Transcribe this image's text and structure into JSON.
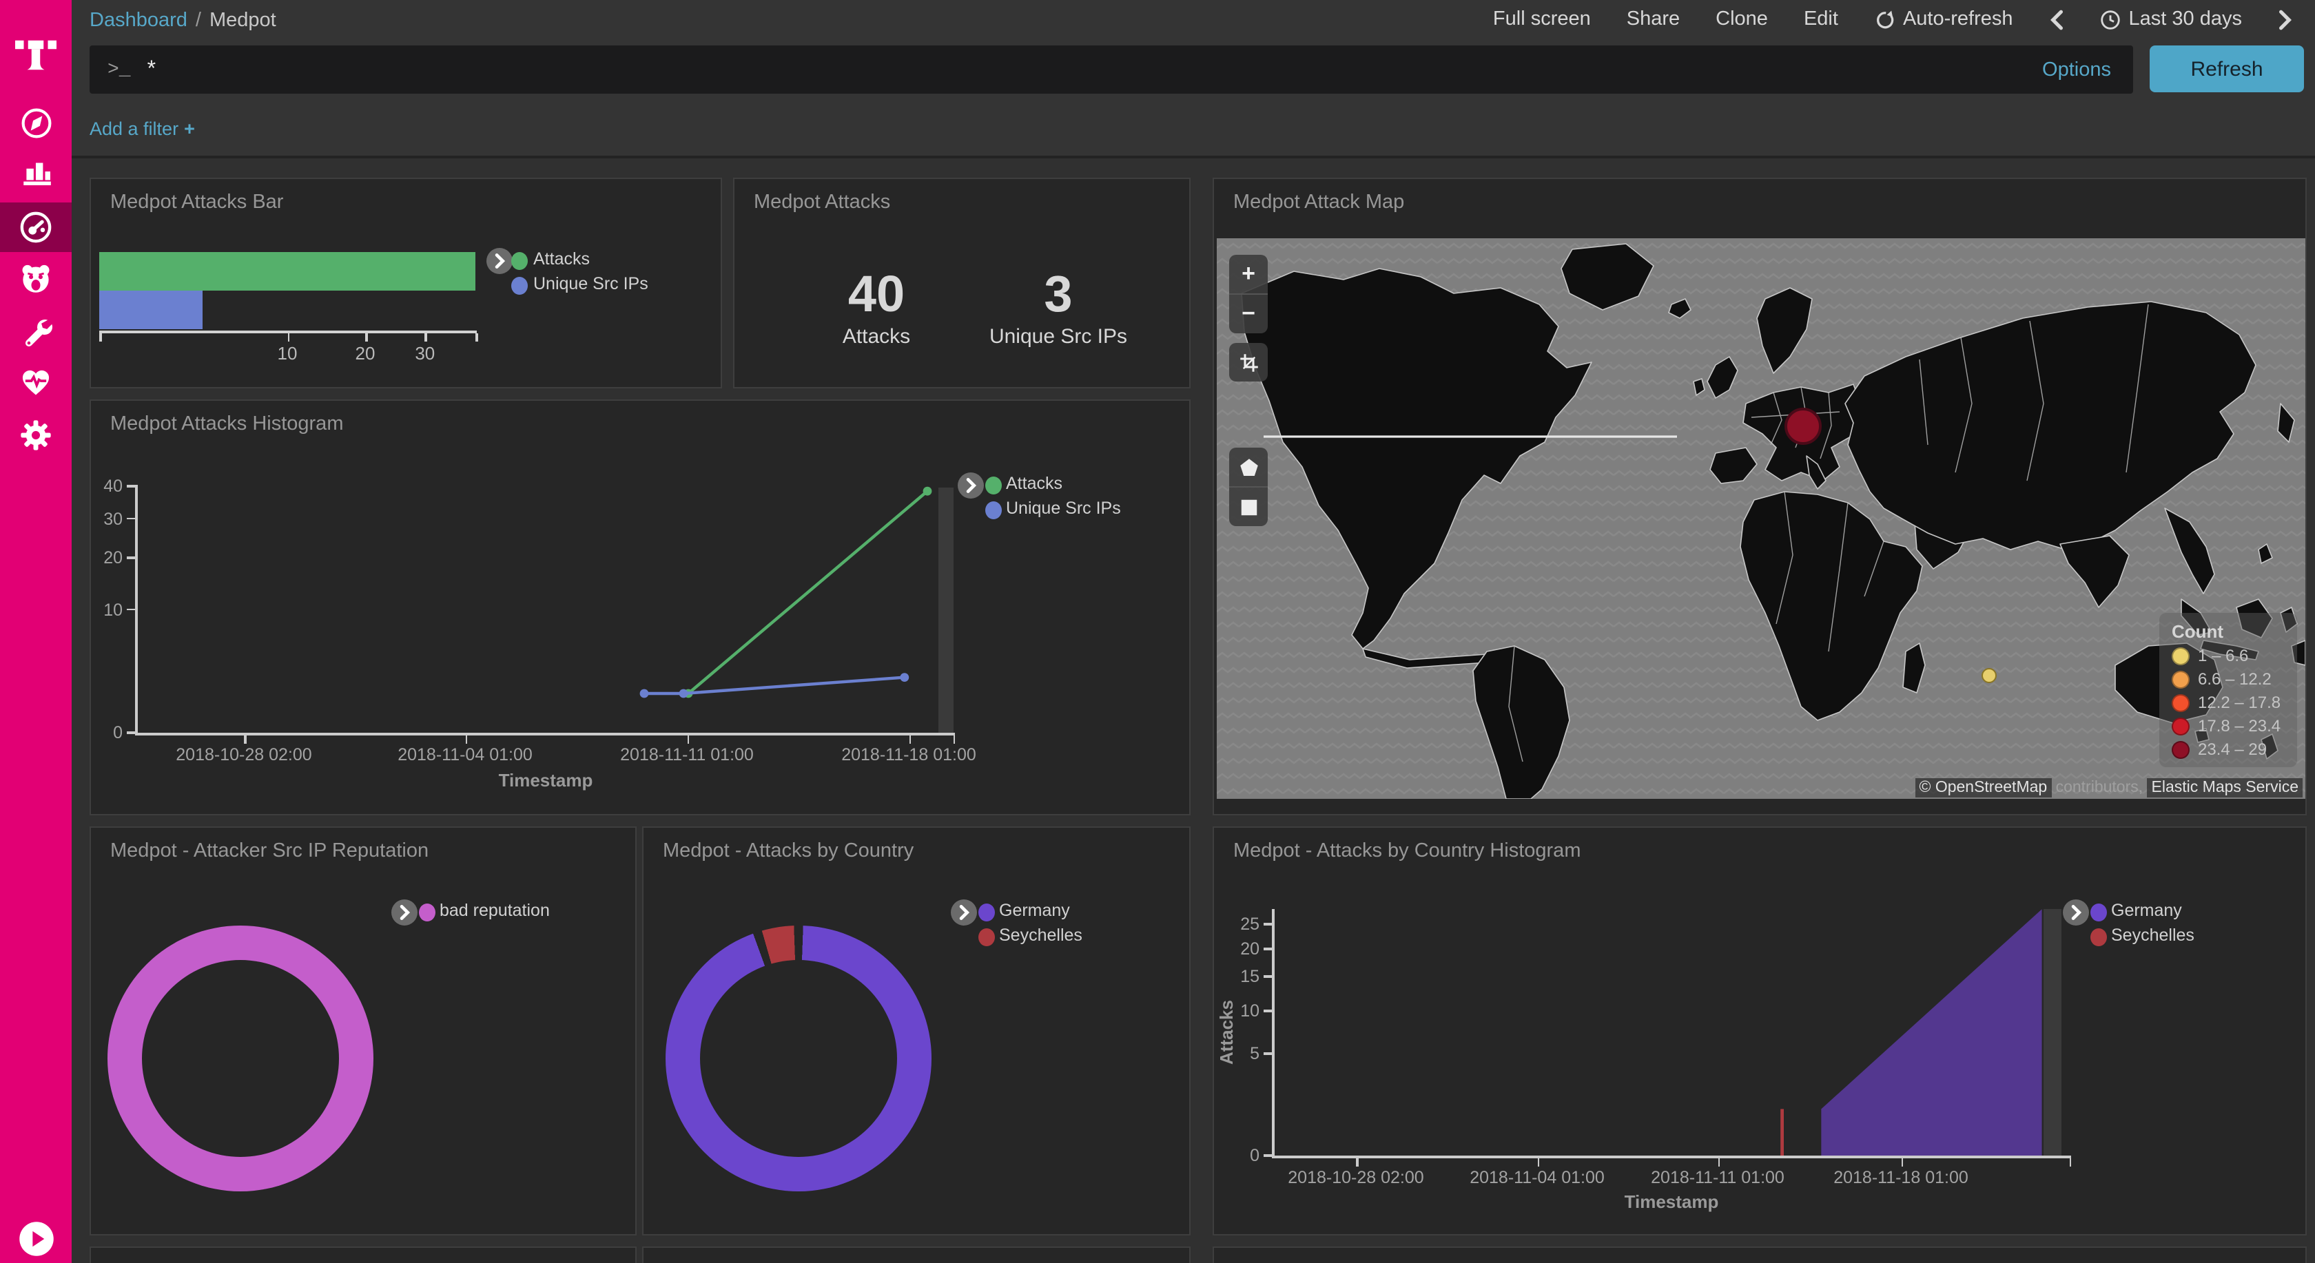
{
  "topbar": {
    "breadcrumb": {
      "root": "Dashboard",
      "separator": "/",
      "current": "Medpot"
    },
    "full_screen": "Full screen",
    "share": "Share",
    "clone": "Clone",
    "edit": "Edit",
    "auto_refresh": "Auto-refresh",
    "time_range": "Last 30 days"
  },
  "querybar": {
    "prompt": ">_",
    "value": "*",
    "options": "Options",
    "refresh": "Refresh"
  },
  "filterbar": {
    "add_filter": "Add a filter",
    "plus": "+"
  },
  "sidebar": {
    "icons": [
      "telekom-logo",
      "discover-compass",
      "visualize-bar-chart",
      "dashboard-gauge",
      "bear-app",
      "dev-tools-wrench",
      "monitoring-heartbeat",
      "management-gear",
      "collapse-play"
    ]
  },
  "colors": {
    "brand_magenta": "#e20074",
    "sidebar_active": "#8c004a",
    "link_blue": "#57a8c9",
    "refresh_button": "#4ea6c8",
    "attacks_green": "#55b06b",
    "unique_ips_blue": "#6b80d0",
    "reputation_pink": "#c45ecb",
    "germany_purple": "#6b46cd",
    "germany_area_fill": "#53378f",
    "seychelles_red": "#ae3a3f",
    "map_water": "#7f7f7f",
    "map_land": "#0f0f0f"
  },
  "chart_data": [
    {
      "id": "attacks_bar",
      "type": "bar",
      "orientation": "horizontal",
      "title": "Medpot Attacks Bar",
      "categories": [
        "Attacks",
        "Unique Src IPs"
      ],
      "values": [
        40,
        3
      ],
      "colors": [
        "#55b06b",
        "#6b80d0"
      ],
      "xlim": [
        0,
        40
      ],
      "x_ticks": [
        10,
        20,
        30
      ],
      "x_scale": "sqrt",
      "legend_position": "right"
    },
    {
      "id": "attacks_metric",
      "type": "metric",
      "title": "Medpot Attacks",
      "metrics": [
        {
          "value": "40",
          "label": "Attacks"
        },
        {
          "value": "3",
          "label": "Unique Src IPs"
        }
      ]
    },
    {
      "id": "attack_map",
      "type": "map",
      "title": "Medpot Attack Map",
      "legend_title": "Count",
      "bins": [
        {
          "label": "1 – 6.6",
          "color": "#ecd26c"
        },
        {
          "label": "6.6 – 12.2",
          "color": "#f2a04c"
        },
        {
          "label": "12.2 – 17.8",
          "color": "#f4512c"
        },
        {
          "label": "17.8 – 23.4",
          "color": "#cc1b27"
        },
        {
          "label": "23.4 – 29",
          "color": "#8e1026"
        }
      ],
      "markers": [
        {
          "location": "Germany",
          "bin": "23.4 – 29",
          "color": "#8e1026",
          "stroke": "#4a0a18",
          "xf": 0.539,
          "yf": 0.335,
          "r": 13.5
        },
        {
          "location": "Seychelles (Indian Ocean)",
          "bin": "1 – 6.6",
          "color": "#e7cf6d",
          "stroke": "#8a7524",
          "xf": 0.71,
          "yf": 0.78,
          "r": 5.5
        }
      ],
      "controls": {
        "zoom_in": "+",
        "zoom_out": "−"
      },
      "attribution": {
        "copyright": "©",
        "osm": "OpenStreetMap",
        "middle": " contributors, ",
        "ems": "Elastic Maps Service"
      }
    },
    {
      "id": "attacks_histogram",
      "type": "line",
      "title": "Medpot Attacks Histogram",
      "xlabel": "Timestamp",
      "x_ticks": [
        "2018-10-28 02:00",
        "2018-11-04 01:00",
        "2018-11-11 01:00",
        "2018-11-18 01:00"
      ],
      "y_ticks": [
        "40",
        "30",
        "20",
        "10",
        "0"
      ],
      "ylim": [
        0,
        40
      ],
      "y_scale": "sqrt",
      "series": [
        {
          "name": "Attacks",
          "color": "#55b06b",
          "points": [
            {
              "x": "2018-11-11",
              "y": 1,
              "xf": 0.676
            },
            {
              "x": "2018-11-19",
              "y": 38,
              "xf": 0.968
            }
          ]
        },
        {
          "name": "Unique Src IPs",
          "color": "#6b80d0",
          "points": [
            {
              "x": "2018-11-09",
              "y": 1,
              "xf": 0.622
            },
            {
              "x": "2018-11-11",
              "y": 1,
              "xf": 0.67
            },
            {
              "x": "2018-11-17",
              "y": 2,
              "xf": 0.94
            }
          ]
        }
      ]
    },
    {
      "id": "attacker_src_ip_reputation",
      "type": "pie",
      "donut": true,
      "title": "Medpot - Attacker Src IP Reputation",
      "slices": [
        {
          "label": "bad reputation",
          "fraction": 1,
          "color": "#c45ecb"
        }
      ]
    },
    {
      "id": "attacks_by_country",
      "type": "pie",
      "donut": true,
      "title": "Medpot - Attacks by Country",
      "slices": [
        {
          "label": "Germany",
          "value": 38,
          "fraction": 0.95,
          "color": "#6b46cd"
        },
        {
          "label": "Seychelles",
          "value": 2,
          "fraction": 0.05,
          "color": "#ae3a3f"
        }
      ]
    },
    {
      "id": "attacks_by_country_histogram",
      "type": "area",
      "title": "Medpot - Attacks by Country Histogram",
      "xlabel": "Timestamp",
      "ylabel": "Attacks",
      "x_ticks": [
        "2018-10-28 02:00",
        "2018-11-04 01:00",
        "2018-11-11 01:00",
        "2018-11-18 01:00"
      ],
      "y_ticks": [
        "25",
        "20",
        "15",
        "10",
        "5",
        "0"
      ],
      "ylim": [
        0,
        25
      ],
      "y_scale": "sqrt",
      "legend": [
        {
          "label": "Germany",
          "color": "#6b46cd"
        },
        {
          "label": "Seychelles",
          "color": "#ae3a3f"
        }
      ],
      "series": [
        {
          "name": "Germany",
          "render": "area",
          "color": "#53378f",
          "points": [
            {
              "x": "2018-11-14",
              "y": 1,
              "xf": 0.688
            },
            {
              "x": "2018-11-21",
              "y": 28,
              "xf": 0.965
            }
          ]
        },
        {
          "name": "Seychelles",
          "render": "bar",
          "color": "#ae3a3f",
          "points": [
            {
              "x": "2018-11-13",
              "y": 1,
              "xf": 0.639
            }
          ]
        }
      ]
    }
  ]
}
